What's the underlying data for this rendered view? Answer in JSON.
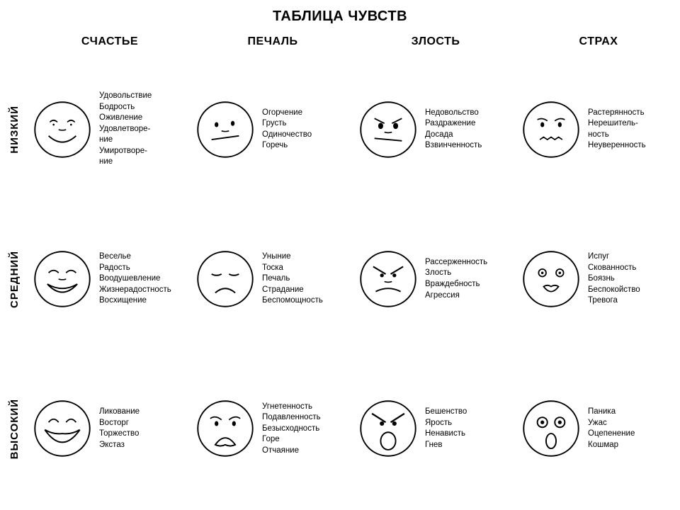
{
  "title": "ТАБЛИЦА ЧУВСТВ",
  "columns": [
    "СЧАСТЬЕ",
    "ПЕЧАЛЬ",
    "ЗЛОСТЬ",
    "СТРАХ"
  ],
  "rows": [
    "НИЗКИЙ",
    "СРЕДНИЙ",
    "ВЫСОКИЙ"
  ],
  "stroke_color": "#000000",
  "stroke_width": 2.2,
  "background_color": "#ffffff",
  "text_color": "#000000",
  "title_fontsize": 20,
  "header_fontsize": 16,
  "row_header_fontsize": 15,
  "word_fontsize": 11.5,
  "face_diameter": 88,
  "cells": [
    [
      {
        "face": "happy-low",
        "words": [
          "Удовольствие",
          "Бодрость",
          "Оживление",
          "Удовлетворе-",
          "ние",
          "Умиротворе-",
          "ние"
        ]
      },
      {
        "face": "sad-low",
        "words": [
          "Огорчение",
          "Грусть",
          "Одиночество",
          "Горечь"
        ]
      },
      {
        "face": "angry-low",
        "words": [
          "Недовольство",
          "Раздражение",
          "Досада",
          "Взвинченность"
        ]
      },
      {
        "face": "fear-low",
        "words": [
          "Растерянность",
          "Нерешитель-",
          "ность",
          "Неуверенность"
        ]
      }
    ],
    [
      {
        "face": "happy-mid",
        "words": [
          "Веселье",
          "Радость",
          "Воодушевление",
          "Жизнерадостность",
          "Восхищение"
        ]
      },
      {
        "face": "sad-mid",
        "words": [
          "Уныние",
          "Тоска",
          "Печаль",
          "Страдание",
          "Беспомощность"
        ]
      },
      {
        "face": "angry-mid",
        "words": [
          "Рассерженность",
          "Злость",
          "Враждебность",
          "Агрессия"
        ]
      },
      {
        "face": "fear-mid",
        "words": [
          "Испуг",
          "Скованность",
          "Боязнь",
          "Беспокойство",
          "Тревога"
        ]
      }
    ],
    [
      {
        "face": "happy-high",
        "words": [
          "Ликование",
          "Восторг",
          "Торжество",
          "Экстаз"
        ]
      },
      {
        "face": "sad-high",
        "words": [
          "Угнетенность",
          "Подавленность",
          "Безысходность",
          "Горе",
          "Отчаяние"
        ]
      },
      {
        "face": "angry-high",
        "words": [
          "Бешенство",
          "Ярость",
          "Ненависть",
          "Гнев"
        ]
      },
      {
        "face": "fear-high",
        "words": [
          "Паника",
          "Ужас",
          "Оцепенение",
          "Кошмар"
        ]
      }
    ]
  ]
}
